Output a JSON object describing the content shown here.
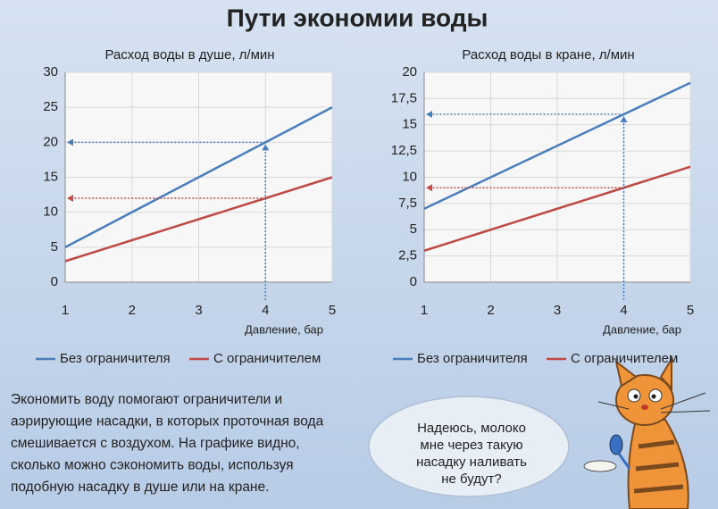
{
  "title": "Пути экономии воды",
  "chart_data": [
    {
      "type": "line",
      "title": "Расход воды в душе, л/мин",
      "x_label": "Давление, бар",
      "x": [
        1,
        2,
        3,
        4,
        5
      ],
      "xlim": [
        1,
        5
      ],
      "xticks": [
        1,
        2,
        3,
        4,
        5
      ],
      "ylim": [
        0,
        30
      ],
      "yticks": [
        0,
        5,
        10,
        15,
        20,
        25,
        30
      ],
      "grid": true,
      "reference_x": 4,
      "series": [
        {
          "name": "Без ограничителя",
          "color": "#4a7ebb",
          "values": [
            5,
            10,
            15,
            20,
            25
          ]
        },
        {
          "name": "С ограничителем",
          "color": "#be4b48",
          "values": [
            3,
            6,
            9,
            12,
            15
          ]
        }
      ]
    },
    {
      "type": "line",
      "title": "Расход воды в кране, л/мин",
      "x_label": "Давление, бар",
      "x": [
        1,
        2,
        3,
        4,
        5
      ],
      "xlim": [
        1,
        5
      ],
      "xticks": [
        1,
        2,
        3,
        4,
        5
      ],
      "ylim": [
        0,
        20
      ],
      "yticks": [
        0,
        {
          "value": 2.5,
          "label": "2,5"
        },
        5,
        {
          "value": 7.5,
          "label": "7,5"
        },
        10,
        {
          "value": 12.5,
          "label": "12,5"
        },
        15,
        {
          "value": 17.5,
          "label": "17,5"
        },
        20
      ],
      "grid": true,
      "reference_x": 4,
      "series": [
        {
          "name": "Без ограничителя",
          "color": "#4a7ebb",
          "values": [
            7,
            10,
            13,
            16,
            19
          ]
        },
        {
          "name": "С ограничителем",
          "color": "#be4b48",
          "values": [
            3,
            5,
            7,
            9,
            11
          ]
        }
      ]
    }
  ],
  "description": [
    "Экономить воду помогают ограничители и",
    "аэрирующие насадки, в которых проточная вода",
    "смешивается с воздухом. На графике видно,",
    "сколько можно сэкономить воды, используя",
    "подобную насадку в душе или на кране."
  ],
  "speech": [
    "Надеюсь, молоко",
    "мне через такую",
    "насадку наливать",
    "не будут?"
  ]
}
